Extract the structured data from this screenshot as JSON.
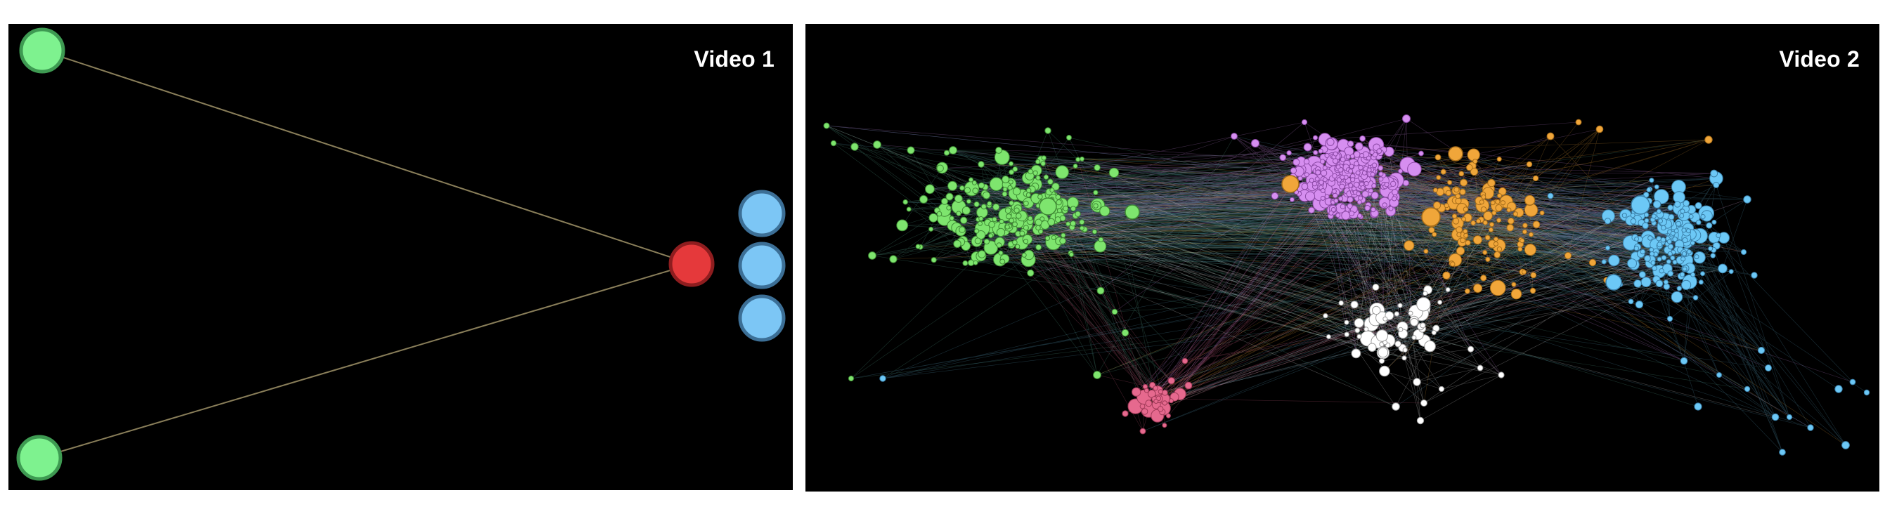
{
  "panels": [
    {
      "title": "Video 1",
      "colors": {
        "green": "#7ef28f",
        "red": "#e5393b",
        "blue": "#7cc6f5",
        "edge": "#8a7f5a"
      }
    },
    {
      "title": "Video 2",
      "colors": {
        "green": "#7ee56e",
        "purple": "#d68ef0",
        "orange": "#f0a63a",
        "blue": "#6cc8f6",
        "white": "#ffffff",
        "pink": "#e6698e"
      }
    }
  ]
}
